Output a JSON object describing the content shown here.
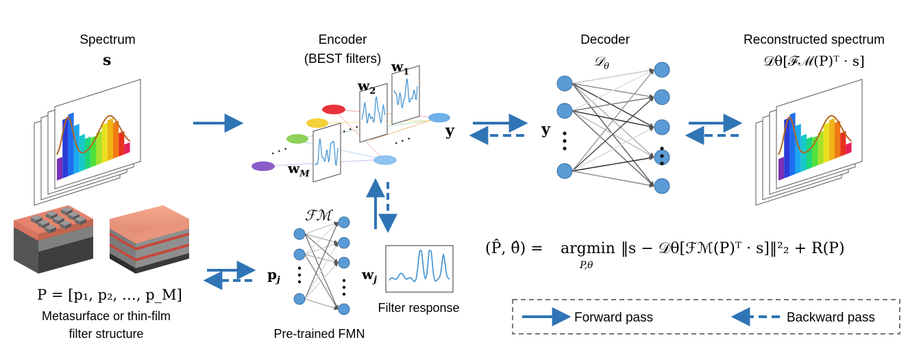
{
  "spectrum": {
    "title": "Spectrum",
    "symbol": "s"
  },
  "encoder": {
    "title": "Encoder",
    "subtitle": "(BEST filters)",
    "w1": "w",
    "w1_sub": "1",
    "w2": "w",
    "w2_sub": "2",
    "wM": "w",
    "wM_sub": "M",
    "output": "y"
  },
  "decoder": {
    "title": "Decoder",
    "symbol": "𝒟",
    "symbol_sub": "θ",
    "input": "y"
  },
  "reconstructed": {
    "title": "Reconstructed spectrum",
    "formula": "𝒟θ[ℱℳ(P)ᵀ · s]"
  },
  "structure": {
    "formula": "P = [p₁, p₂, …, p_M]",
    "caption_line1": "Metasurface or thin-film",
    "caption_line2": "filter structure"
  },
  "fmn": {
    "symbol": "ℱℳ",
    "input": "p",
    "input_sub": "j",
    "output": "w",
    "output_sub": "j",
    "caption": "Pre-trained FMN"
  },
  "filter_response": {
    "caption": "Filter response"
  },
  "objective": {
    "lhs": "(P̂, θ̂) = ",
    "op": "argmin",
    "op_sub": "P,θ",
    "rhs": "‖s − 𝒟θ[ℱℳ(P)ᵀ · s]‖²₂ + R(P)"
  },
  "legend": {
    "forward": "Forward pass",
    "backward": "Backward pass"
  },
  "colors": {
    "arrow": "#2f74b5",
    "node": "#5b9bd5",
    "node_stroke": "#3a6ea5",
    "curve": "#b5651d",
    "filter_line": "#3a8fd0",
    "layer_a": "#e9947a",
    "layer_b": "#8a8a8a",
    "layer_c": "#2c2c2c"
  }
}
